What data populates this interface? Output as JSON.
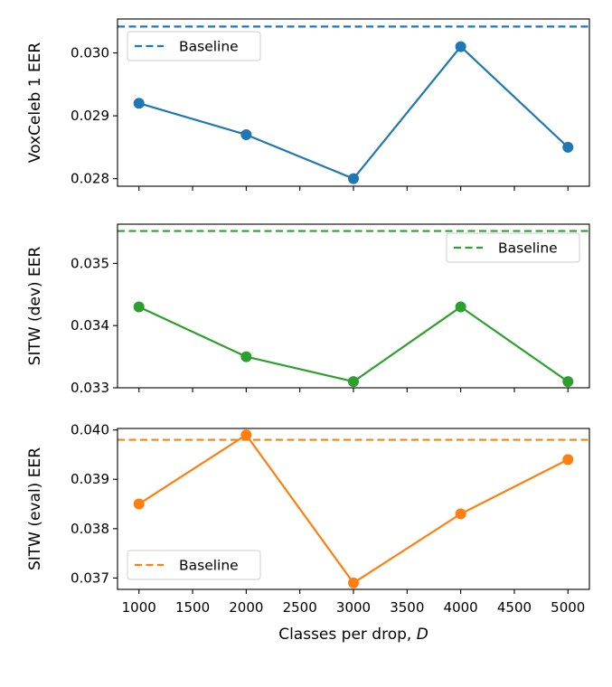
{
  "chart_data": [
    {
      "type": "line",
      "x": [
        1000,
        2000,
        3000,
        4000,
        5000
      ],
      "series": [
        {
          "values": [
            0.0292,
            0.0287,
            0.028,
            0.0301,
            0.0285
          ],
          "color": "#1f77b4"
        }
      ],
      "baseline": {
        "name": "Baseline",
        "value": 0.03042,
        "style": "dashed",
        "color": "#1f77b4"
      },
      "ylabel": "VoxCeleb 1 EER",
      "xlabel": "",
      "xlim": [
        800,
        5200
      ],
      "ylim": [
        0.02788,
        0.03054
      ],
      "yticks": [
        0.028,
        0.029,
        0.03
      ],
      "ytick_labels": [
        "0.028",
        "0.029",
        "0.030"
      ],
      "legend_position": "upper-left",
      "grid": false
    },
    {
      "type": "line",
      "x": [
        1000,
        2000,
        3000,
        4000,
        5000
      ],
      "series": [
        {
          "values": [
            0.0343,
            0.0335,
            0.0331,
            0.0343,
            0.0331
          ],
          "color": "#2ca02c"
        }
      ],
      "baseline": {
        "name": "Baseline",
        "value": 0.03552,
        "style": "dashed",
        "color": "#2ca02c"
      },
      "ylabel": "SITW (dev) EER",
      "xlabel": "",
      "xlim": [
        800,
        5200
      ],
      "ylim": [
        0.033,
        0.03563
      ],
      "yticks": [
        0.033,
        0.034,
        0.035
      ],
      "ytick_labels": [
        "0.033",
        "0.034",
        "0.035"
      ],
      "legend_position": "upper-right",
      "grid": false
    },
    {
      "type": "line",
      "x": [
        1000,
        2000,
        3000,
        4000,
        5000
      ],
      "series": [
        {
          "values": [
            0.0385,
            0.0399,
            0.0369,
            0.0383,
            0.0394
          ],
          "color": "#ff7f0e"
        }
      ],
      "baseline": {
        "name": "Baseline",
        "value": 0.0398,
        "style": "dashed",
        "color": "#ff7f0e"
      },
      "ylabel": "SITW (eval) EER",
      "xlabel": "Classes per drop, D",
      "xlim": [
        800,
        5200
      ],
      "ylim": [
        0.03677,
        0.04003
      ],
      "xticks": [
        1000,
        1500,
        2000,
        2500,
        3000,
        3500,
        4000,
        4500,
        5000
      ],
      "xtick_labels": [
        "1000",
        "1500",
        "2000",
        "2500",
        "3000",
        "3500",
        "4000",
        "4500",
        "5000"
      ],
      "yticks": [
        0.037,
        0.038,
        0.039,
        0.04
      ],
      "ytick_labels": [
        "0.037",
        "0.038",
        "0.039",
        "0.040"
      ],
      "legend_position": "lower-left",
      "grid": false
    }
  ]
}
